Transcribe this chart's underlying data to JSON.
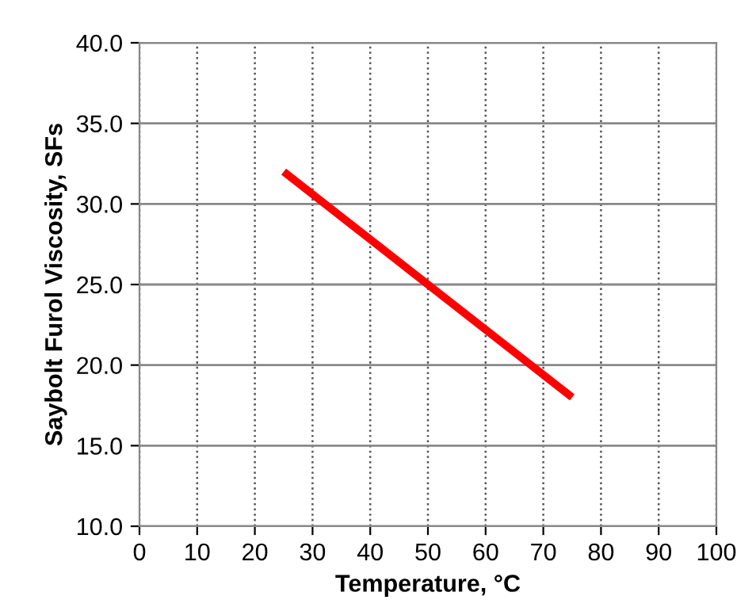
{
  "chart_data": {
    "type": "line",
    "xlabel": "Temperature, °C",
    "ylabel": "Saybolt Furol Viscosity, SFs",
    "series": [
      {
        "color": "#ff0000",
        "x": [
          25,
          75
        ],
        "values": [
          32.0,
          18.0
        ]
      }
    ],
    "xlim": [
      0,
      100
    ],
    "xticks": [
      0,
      10,
      20,
      30,
      40,
      50,
      60,
      70,
      80,
      90,
      100
    ],
    "ylim": [
      10.0,
      40.0
    ],
    "yticks": [
      {
        "value": 10,
        "label": "10.0"
      },
      {
        "value": 15,
        "label": "15.0"
      },
      {
        "value": 20,
        "label": "20.0"
      },
      {
        "value": 25,
        "label": "25.0"
      },
      {
        "value": 30,
        "label": "30.0"
      },
      {
        "value": 35,
        "label": "35.0"
      },
      {
        "value": 40,
        "label": "40.0"
      }
    ],
    "grid": true,
    "marker": "none",
    "line_style": "solid"
  }
}
